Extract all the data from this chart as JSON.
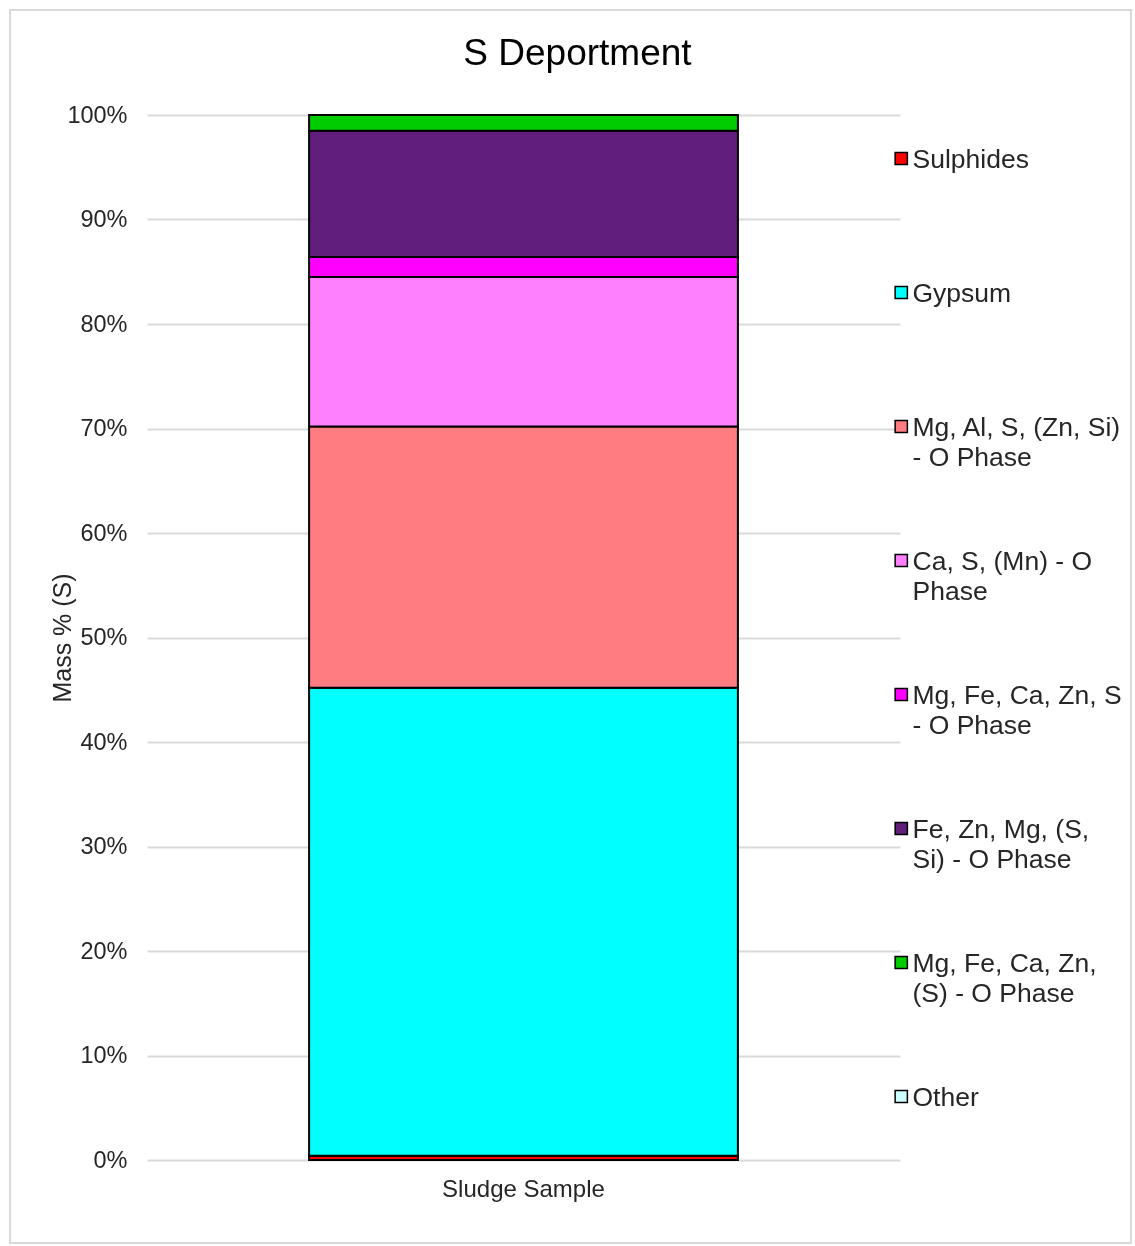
{
  "chart_data": {
    "type": "bar",
    "title": "S Deportment",
    "ylabel": "Mass % (S)",
    "categories": [
      "Sludge Sample"
    ],
    "series": [
      {
        "name": "Sulphides",
        "color": "#ff0000",
        "values": [
          0.4
        ]
      },
      {
        "name": "Gypsum",
        "color": "#00ffff",
        "values": [
          44.8
        ]
      },
      {
        "name": "Mg, Al, S, (Zn, Si) - O Phase",
        "color": "#ff7c80",
        "values": [
          25.0
        ]
      },
      {
        "name": "Ca, S, (Mn) - O Phase",
        "color": "#ff80ff",
        "values": [
          14.3
        ]
      },
      {
        "name": "Mg, Fe, Ca, Zn, S - O Phase",
        "color": "#ff00ff",
        "values": [
          1.9
        ]
      },
      {
        "name": "Fe, Zn, Mg, (S, Si) - O Phase",
        "color": "#611e7c",
        "values": [
          12.1
        ]
      },
      {
        "name": "Mg, Fe, Ca, Zn, (S) - O Phase",
        "color": "#00cc00",
        "values": [
          1.5
        ]
      },
      {
        "name": "Other",
        "color": "#ccffff",
        "values": [
          null
        ]
      }
    ],
    "stacked": true,
    "ylim": [
      0,
      100
    ],
    "yticks": [
      {
        "value": 0,
        "label": "0%"
      },
      {
        "value": 10,
        "label": "10%"
      },
      {
        "value": 20,
        "label": "20%"
      },
      {
        "value": 30,
        "label": "30%"
      },
      {
        "value": 40,
        "label": "40%"
      },
      {
        "value": 50,
        "label": "50%"
      },
      {
        "value": 60,
        "label": "60%"
      },
      {
        "value": 70,
        "label": "70%"
      },
      {
        "value": 80,
        "label": "80%"
      },
      {
        "value": 90,
        "label": "90%"
      },
      {
        "value": 100,
        "label": "100%"
      }
    ],
    "grid": "y",
    "legend": "right"
  }
}
